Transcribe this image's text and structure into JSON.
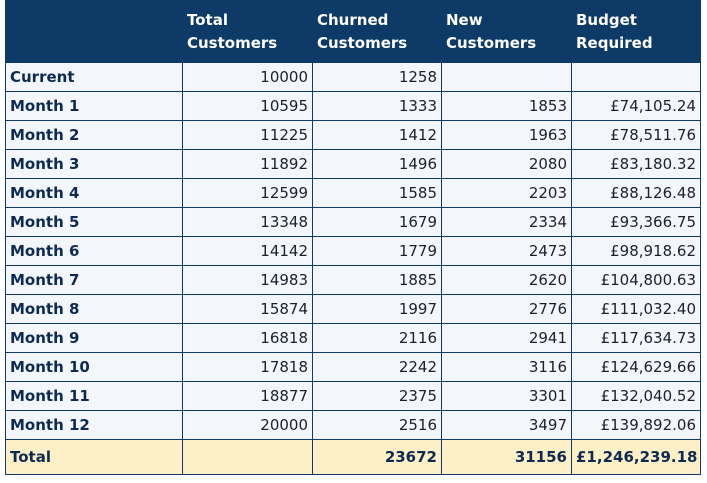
{
  "table": {
    "headers": [
      "Total Customers",
      "Churned Customers",
      "New Customers",
      "Budget Required"
    ],
    "rows": [
      {
        "label": "Current",
        "total": 10000,
        "churned": 1258
      },
      {
        "label": "Month 1",
        "total": 10595,
        "churned": 1333,
        "new": 1853,
        "budget": "£74,105.24"
      },
      {
        "label": "Month 2",
        "total": 11225,
        "churned": 1412,
        "new": 1963,
        "budget": "£78,511.76"
      },
      {
        "label": "Month 3",
        "total": 11892,
        "churned": 1496,
        "new": 2080,
        "budget": "£83,180.32"
      },
      {
        "label": "Month 4",
        "total": 12599,
        "churned": 1585,
        "new": 2203,
        "budget": "£88,126.48"
      },
      {
        "label": "Month 5",
        "total": 13348,
        "churned": 1679,
        "new": 2334,
        "budget": "£93,366.75"
      },
      {
        "label": "Month 6",
        "total": 14142,
        "churned": 1779,
        "new": 2473,
        "budget": "£98,918.62"
      },
      {
        "label": "Month 7",
        "total": 14983,
        "churned": 1885,
        "new": 2620,
        "budget": "£104,800.63"
      },
      {
        "label": "Month 8",
        "total": 15874,
        "churned": 1997,
        "new": 2776,
        "budget": "£111,032.40"
      },
      {
        "label": "Month 9",
        "total": 16818,
        "churned": 2116,
        "new": 2941,
        "budget": "£117,634.73"
      },
      {
        "label": "Month 10",
        "total": 17818,
        "churned": 2242,
        "new": 3116,
        "budget": "£124,629.66"
      },
      {
        "label": "Month 11",
        "total": 18877,
        "churned": 2375,
        "new": 3301,
        "budget": "£132,040.52"
      },
      {
        "label": "Month 12",
        "total": 20000,
        "churned": 2516,
        "new": 3497,
        "budget": "£139,892.06"
      }
    ],
    "total": {
      "label": "Total",
      "churned": 23672,
      "new": 31156,
      "budget": "£1,246,239.18"
    }
  }
}
